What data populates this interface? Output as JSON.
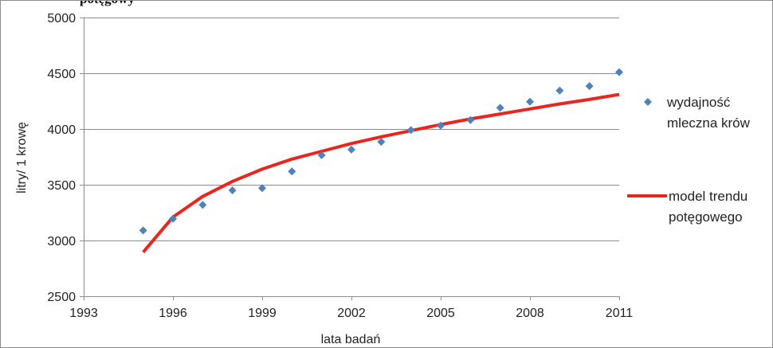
{
  "chart_data": {
    "type": "scatter",
    "title": "",
    "xlabel": "lata badań",
    "ylabel": "litry/ 1 krowę",
    "xlim": [
      1993,
      2011
    ],
    "ylim": [
      2500,
      5000
    ],
    "xticks": [
      1993,
      1996,
      1999,
      2002,
      2005,
      2008,
      2011
    ],
    "yticks": [
      2500,
      3000,
      3500,
      4000,
      4500,
      5000
    ],
    "grid": "horizontal",
    "legend_position": "right",
    "series": [
      {
        "name": "wydajność mleczna krów",
        "type": "scatter",
        "marker": "diamond",
        "color": "#4f81bd",
        "x": [
          1995,
          1996,
          1997,
          1998,
          1999,
          2000,
          2001,
          2002,
          2003,
          2004,
          2005,
          2006,
          2007,
          2008,
          2009,
          2010,
          2011
        ],
        "y": [
          3090,
          3195,
          3320,
          3450,
          3470,
          3620,
          3765,
          3815,
          3885,
          3990,
          4030,
          4080,
          4190,
          4245,
          4345,
          4385,
          4510
        ]
      },
      {
        "name": "model trendu potęgowego",
        "type": "line",
        "color": "#e8261f",
        "x": [
          1995,
          1996,
          1997,
          1998,
          1999,
          2000,
          2001,
          2002,
          2003,
          2004,
          2005,
          2006,
          2007,
          2008,
          2009,
          2010,
          2011
        ],
        "y": [
          2895,
          3210,
          3395,
          3530,
          3640,
          3730,
          3800,
          3870,
          3930,
          3985,
          4040,
          4090,
          4135,
          4180,
          4225,
          4265,
          4310
        ]
      }
    ],
    "legend_lines": [
      [
        "wydajność",
        "mleczna krów"
      ],
      [
        "model trendu",
        "potęgowego"
      ]
    ]
  },
  "cut_title_fragment": "potęgowy"
}
